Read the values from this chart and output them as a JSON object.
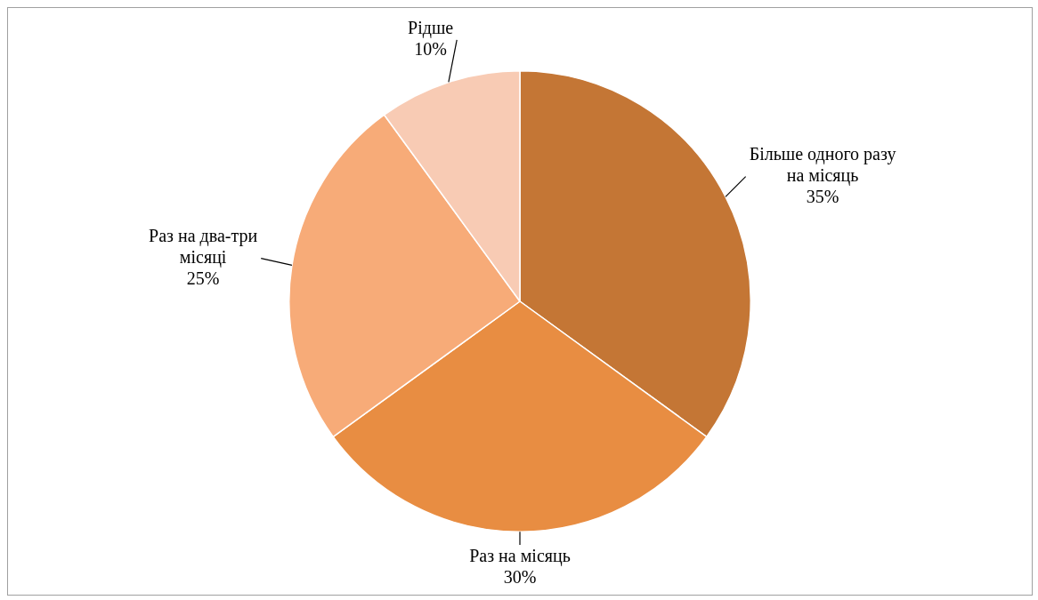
{
  "chart_data": {
    "type": "pie",
    "categories": [
      "Більше одного разу на місяць",
      "Раз на місяць",
      "Раз на два-три місяці",
      "Рідше"
    ],
    "values": [
      35,
      30,
      25,
      10
    ],
    "colors": [
      "#c47635",
      "#e88d42",
      "#f7ab78",
      "#f8cbb4"
    ],
    "value_labels": [
      "35%",
      "30%",
      "25%",
      "10%"
    ],
    "legend": false
  }
}
